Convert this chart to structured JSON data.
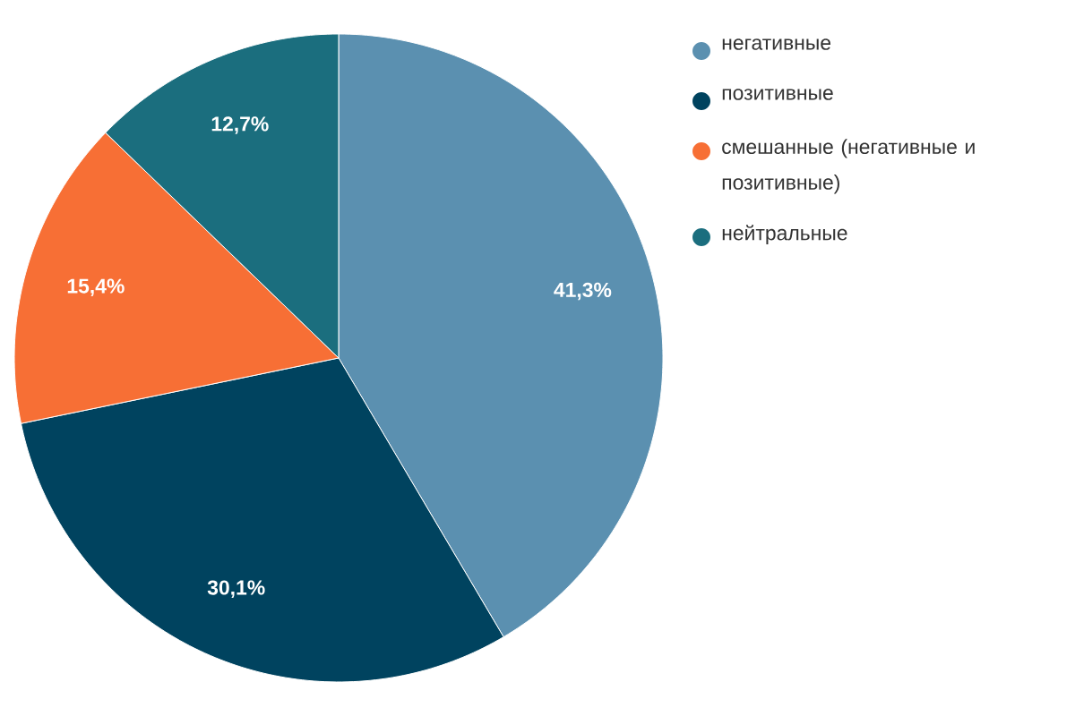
{
  "chart_data": {
    "type": "pie",
    "categories": [
      "негативные",
      "позитивные",
      "смешанные (негативные и позитивные)",
      "нейтральные"
    ],
    "values": [
      41.3,
      30.1,
      15.4,
      12.7
    ],
    "colors": [
      "#5b90b0",
      "#00435f",
      "#f76f35",
      "#1b6e7e"
    ],
    "value_labels": [
      "41,3%",
      "30,1%",
      "15,4%",
      "12,7%"
    ],
    "legend": "top right"
  }
}
